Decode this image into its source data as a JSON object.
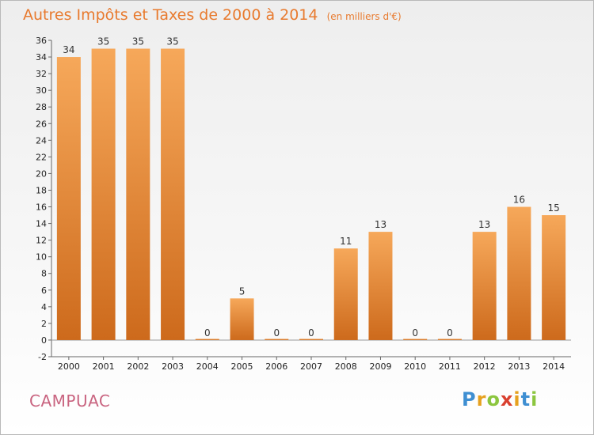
{
  "title": "Autres Impôts et Taxes de 2000 à 2014",
  "subtitle": "(en milliers d'€)",
  "commune": "CAMPUAC",
  "logo": {
    "letters": [
      "P",
      "r",
      "o",
      "x",
      "i",
      "t",
      "i"
    ],
    "colors": [
      "#3f8fd2",
      "#e6a11f",
      "#8cc63f",
      "#d9402f",
      "#e6a11f",
      "#3f8fd2",
      "#8cc63f"
    ]
  },
  "chart_data": {
    "type": "bar",
    "categories": [
      "2000",
      "2001",
      "2002",
      "2003",
      "2004",
      "2005",
      "2006",
      "2007",
      "2008",
      "2009",
      "2010",
      "2011",
      "2012",
      "2013",
      "2014"
    ],
    "values": [
      34,
      35,
      35,
      35,
      0,
      5,
      0,
      0,
      11,
      13,
      0,
      0,
      13,
      16,
      15
    ],
    "ylim": [
      -2,
      36
    ],
    "yticks": [
      -2,
      0,
      2,
      4,
      6,
      8,
      10,
      12,
      14,
      16,
      18,
      20,
      22,
      24,
      26,
      28,
      30,
      32,
      34,
      36
    ],
    "bar_color_light": "#f6a85a",
    "bar_color_dark": "#cd6a1c",
    "grid": false,
    "legend": "none"
  }
}
